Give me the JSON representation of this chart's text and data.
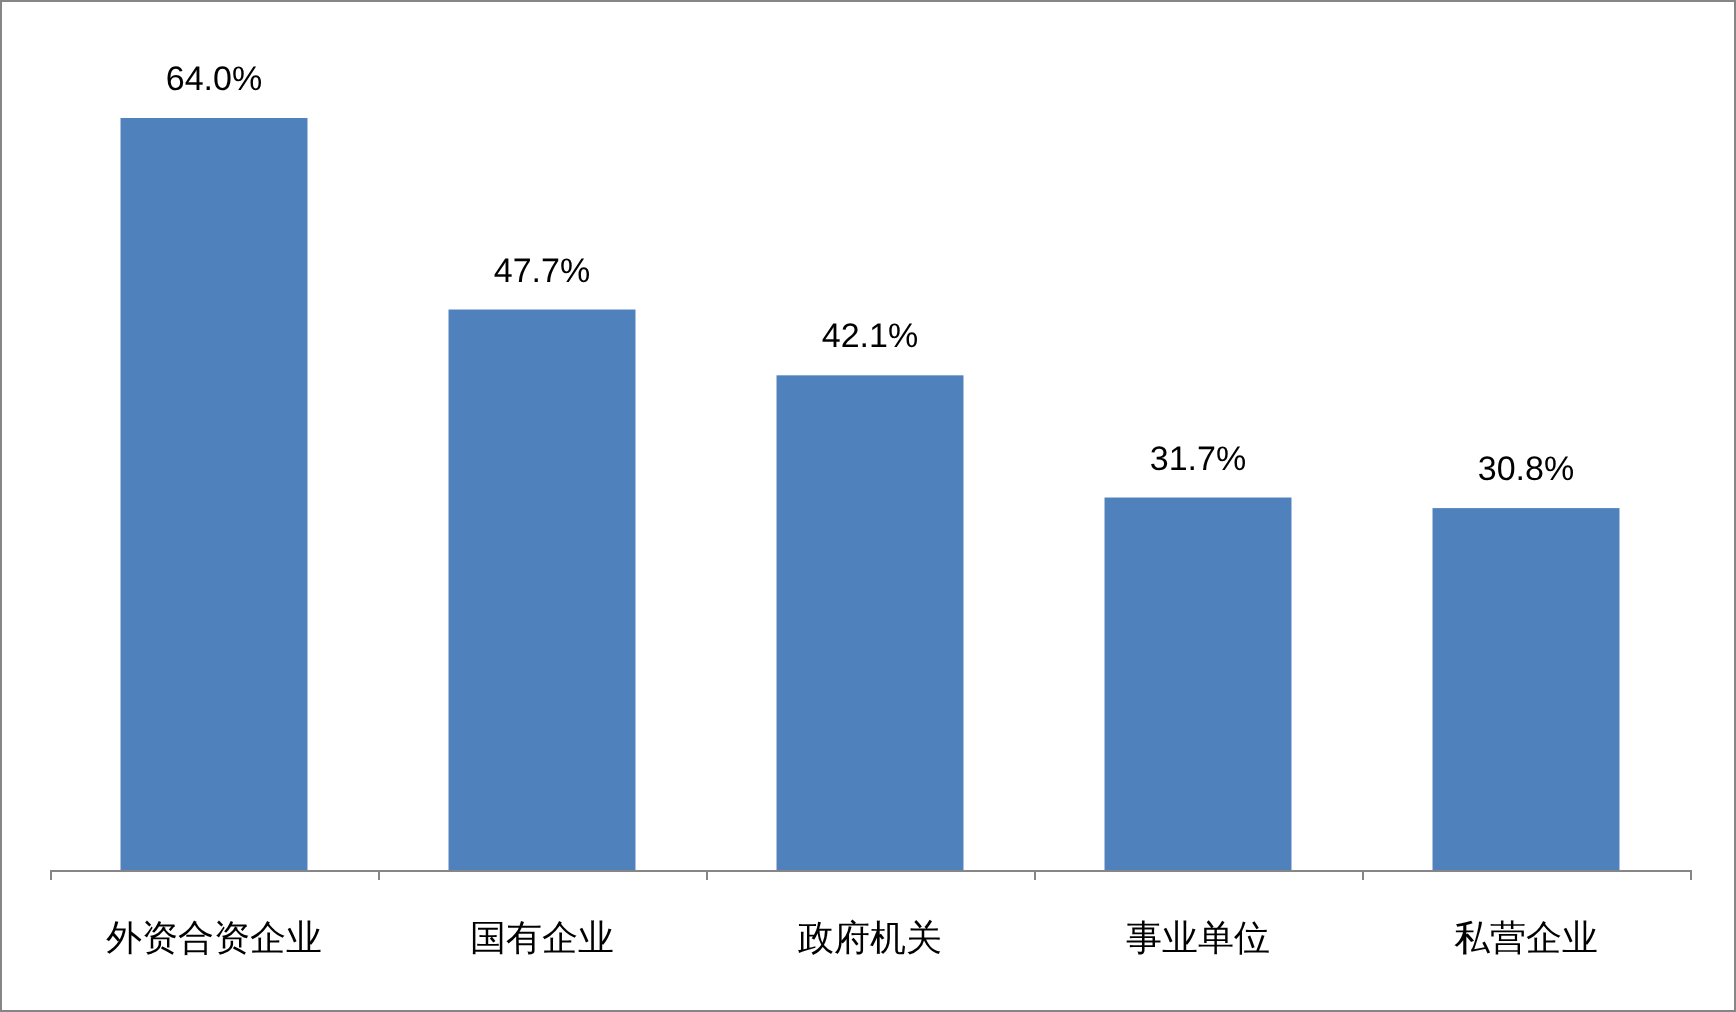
{
  "chart_data": {
    "type": "bar",
    "categories": [
      "外资合资企业",
      "国有企业",
      "政府机关",
      "事业单位",
      "私营企业"
    ],
    "values": [
      64.0,
      47.7,
      42.1,
      31.7,
      30.8
    ],
    "value_labels": [
      "64.0%",
      "47.7%",
      "42.1%",
      "31.7%",
      "30.8%"
    ],
    "color": "#4f81bd"
  }
}
